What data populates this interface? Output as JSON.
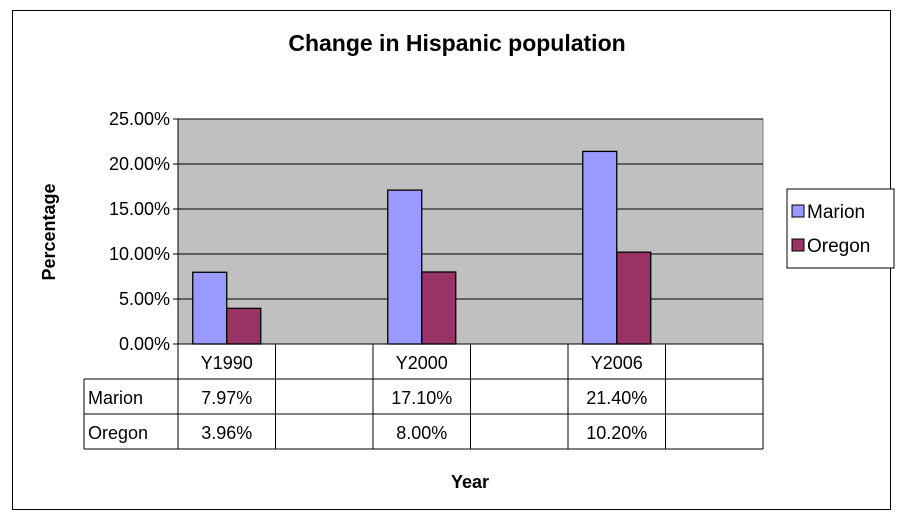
{
  "chart_data": {
    "type": "bar",
    "title": "Change in Hispanic population",
    "xlabel": "Year",
    "ylabel": "Percentage",
    "categories": [
      "Y1990",
      "Y2000",
      "Y2006"
    ],
    "series": [
      {
        "name": "Marion",
        "values": [
          7.97,
          17.1,
          21.4
        ],
        "labels": [
          "7.97%",
          "17.10%",
          "21.40%"
        ],
        "color": "#9999FF"
      },
      {
        "name": "Oregon",
        "values": [
          3.96,
          8.0,
          10.2
        ],
        "labels": [
          "3.96%",
          "8.00%",
          "10.20%"
        ],
        "color": "#993366"
      }
    ],
    "ylim": [
      0,
      25
    ],
    "yticks": [
      "0.00%",
      "5.00%",
      "10.00%",
      "15.00%",
      "20.00%",
      "25.00%"
    ],
    "grid": true,
    "plot_background": "#C0C0C0",
    "legend_position": "right",
    "data_table": true
  }
}
